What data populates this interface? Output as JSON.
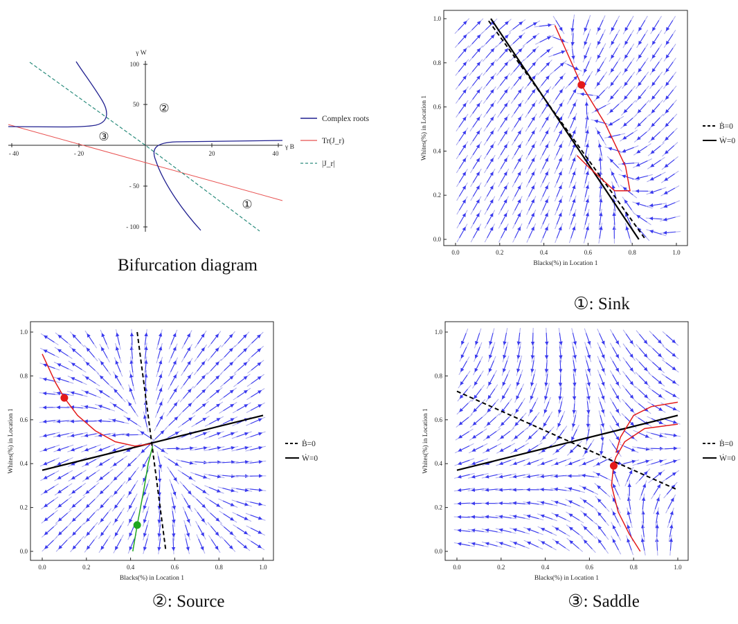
{
  "bifurcation": {
    "caption": "Bifurcation diagram",
    "x_axis_label": "γ B",
    "y_axis_label": "γ W",
    "x_ticks": [
      "- 40",
      "- 20",
      "20",
      "40"
    ],
    "y_ticks": [
      "100",
      "50",
      "- 50",
      "- 100"
    ],
    "regions": [
      "①",
      "②",
      "③"
    ],
    "legend": [
      {
        "label": "Complex roots",
        "color": "#1f1f8f",
        "style": "solid"
      },
      {
        "label": "Tr(J_r)",
        "color": "#e8504f",
        "style": "solid"
      },
      {
        "label": "|J_r|",
        "color": "#2a8c7c",
        "style": "dashed"
      }
    ]
  },
  "phase_plots": [
    {
      "id": "sink",
      "caption": "①: Sink",
      "xlabel": "Blacks(%) in Location 1",
      "ylabel": "Whites(%) in Location 1",
      "x_ticks": [
        "0.0",
        "0.2",
        "0.4",
        "0.6",
        "0.8",
        "1.0"
      ],
      "y_ticks": [
        "0.0",
        "0.2",
        "0.4",
        "0.6",
        "0.8",
        "1.0"
      ],
      "legend": [
        {
          "label": "Ḃ=0",
          "style": "dashed"
        },
        {
          "label": "Ẇ=0",
          "style": "solid"
        }
      ]
    },
    {
      "id": "source",
      "caption": "②: Source",
      "xlabel": "Blacks(%) in Location 1",
      "ylabel": "Whites(%) in Location 1",
      "x_ticks": [
        "0.0",
        "0.2",
        "0.4",
        "0.6",
        "0.8",
        "1.0"
      ],
      "y_ticks": [
        "0.0",
        "0.2",
        "0.4",
        "0.6",
        "0.8",
        "1.0"
      ],
      "legend": [
        {
          "label": "Ḃ=0",
          "style": "dashed"
        },
        {
          "label": "Ẇ=0",
          "style": "solid"
        }
      ]
    },
    {
      "id": "saddle",
      "caption": "③: Saddle",
      "xlabel": "Blacks(%) in Location 1",
      "ylabel": "Whites(%) in Location 1",
      "x_ticks": [
        "0.0",
        "0.2",
        "0.4",
        "0.6",
        "0.8",
        "1.0"
      ],
      "y_ticks": [
        "0.0",
        "0.2",
        "0.4",
        "0.6",
        "0.8",
        "1.0"
      ],
      "legend": [
        {
          "label": "Ḃ=0",
          "style": "dashed"
        },
        {
          "label": "Ẇ=0",
          "style": "solid"
        }
      ]
    }
  ],
  "colors": {
    "field": "#3a3aee",
    "field_light": "#a9a9ee",
    "trajectory_red": "#e31a1a",
    "trajectory_green": "#1fa71f",
    "nullcline": "#000000"
  }
}
